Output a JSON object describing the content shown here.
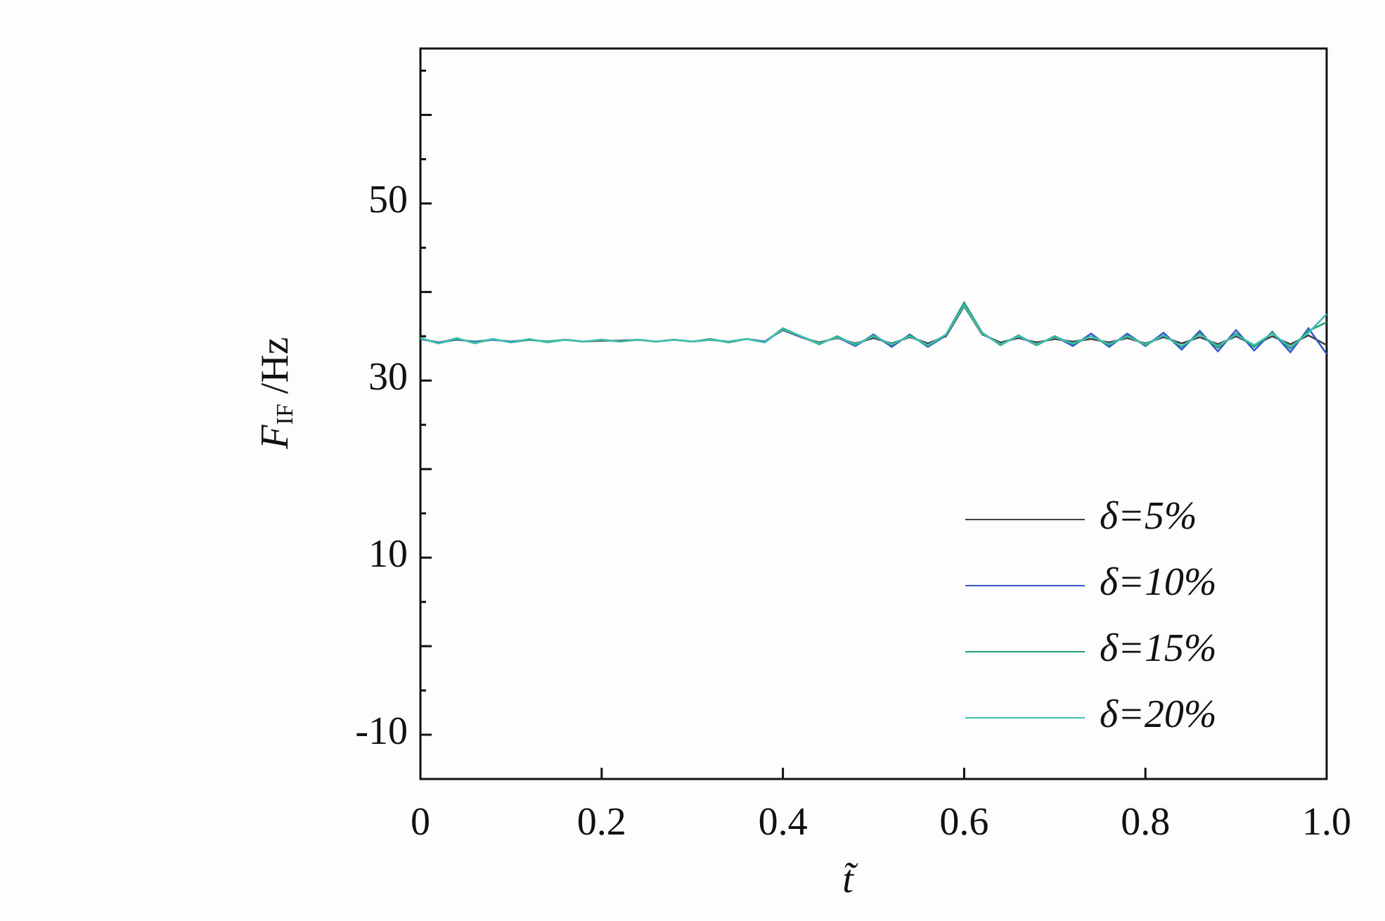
{
  "chart_data": {
    "type": "line",
    "xlabel": "t̃",
    "ylabel": {
      "main": "F",
      "sub": "IF",
      "unit": " /Hz"
    },
    "x": [
      0,
      0.02,
      0.04,
      0.06,
      0.08,
      0.1,
      0.12,
      0.14,
      0.16,
      0.18,
      0.2,
      0.22,
      0.24,
      0.26,
      0.28,
      0.3,
      0.32,
      0.34,
      0.36,
      0.38,
      0.4,
      0.42,
      0.44,
      0.46,
      0.48,
      0.5,
      0.52,
      0.54,
      0.56,
      0.58,
      0.6,
      0.62,
      0.64,
      0.66,
      0.68,
      0.7,
      0.72,
      0.74,
      0.76,
      0.78,
      0.8,
      0.82,
      0.84,
      0.86,
      0.88,
      0.9,
      0.92,
      0.94,
      0.96,
      0.98,
      1.0
    ],
    "series": [
      {
        "name": "δ=5%",
        "color": "#404040",
        "values": [
          34.7,
          34.3,
          34.7,
          34.3,
          34.6,
          34.4,
          34.6,
          34.4,
          34.6,
          34.4,
          34.5,
          34.5,
          34.6,
          34.4,
          34.6,
          34.4,
          34.6,
          34.4,
          34.7,
          34.4,
          35.7,
          34.9,
          34.3,
          34.8,
          34.2,
          34.8,
          34.2,
          34.9,
          34.2,
          35.0,
          38.4,
          35.2,
          34.3,
          34.8,
          34.3,
          34.7,
          34.4,
          34.7,
          34.3,
          34.8,
          34.2,
          34.9,
          34.2,
          34.9,
          34.1,
          35.0,
          34.0,
          35.0,
          34.1,
          35.1,
          34.0
        ]
      },
      {
        "name": "δ=10%",
        "color": "#3358cc",
        "values": [
          34.7,
          34.3,
          34.6,
          34.4,
          34.6,
          34.4,
          34.6,
          34.4,
          34.6,
          34.4,
          34.6,
          34.4,
          34.6,
          34.4,
          34.6,
          34.4,
          34.6,
          34.4,
          34.7,
          34.4,
          35.8,
          34.9,
          34.2,
          34.9,
          33.9,
          35.2,
          33.8,
          35.2,
          33.8,
          35.1,
          38.6,
          35.3,
          34.1,
          35.0,
          34.0,
          35.0,
          33.9,
          35.3,
          33.8,
          35.3,
          33.9,
          35.4,
          33.5,
          35.6,
          33.3,
          35.7,
          33.4,
          35.5,
          33.2,
          35.9,
          33.0
        ]
      },
      {
        "name": "δ=15%",
        "color": "#1f9e6e",
        "values": [
          34.8,
          34.2,
          34.7,
          34.3,
          34.7,
          34.3,
          34.6,
          34.4,
          34.6,
          34.4,
          34.6,
          34.4,
          34.6,
          34.4,
          34.6,
          34.4,
          34.7,
          34.3,
          34.7,
          34.3,
          35.9,
          35.0,
          34.1,
          35.0,
          34.0,
          35.1,
          34.0,
          35.1,
          33.9,
          35.2,
          38.8,
          35.4,
          34.0,
          35.1,
          34.0,
          35.0,
          34.1,
          35.0,
          34.0,
          35.1,
          34.0,
          35.1,
          33.8,
          35.3,
          33.7,
          35.3,
          33.8,
          35.4,
          33.6,
          35.6,
          36.6
        ]
      },
      {
        "name": "δ=20%",
        "color": "#3fbfae",
        "values": [
          34.8,
          34.2,
          34.8,
          34.2,
          34.7,
          34.3,
          34.7,
          34.3,
          34.6,
          34.4,
          34.6,
          34.4,
          34.6,
          34.4,
          34.6,
          34.4,
          34.6,
          34.4,
          34.7,
          34.3,
          35.8,
          35.0,
          34.2,
          34.9,
          34.1,
          35.0,
          34.1,
          35.0,
          34.0,
          35.2,
          38.5,
          35.3,
          34.1,
          35.0,
          34.1,
          34.9,
          34.2,
          35.0,
          34.1,
          35.0,
          34.1,
          35.1,
          33.9,
          35.2,
          33.9,
          35.2,
          34.0,
          35.3,
          33.8,
          35.4,
          37.5
        ]
      }
    ],
    "xlim": [
      0,
      1.0
    ],
    "xticks": [
      0,
      0.2,
      0.4,
      0.6,
      0.8,
      {
        "value": 1,
        "label": "1.0"
      }
    ],
    "ylim": [
      -15,
      67.5
    ],
    "yticks": [
      -10,
      10,
      30,
      50
    ],
    "yticks_minor": [
      -5,
      0,
      5,
      15,
      20,
      25,
      35,
      40,
      45,
      55,
      60,
      65
    ],
    "grid": false
  }
}
